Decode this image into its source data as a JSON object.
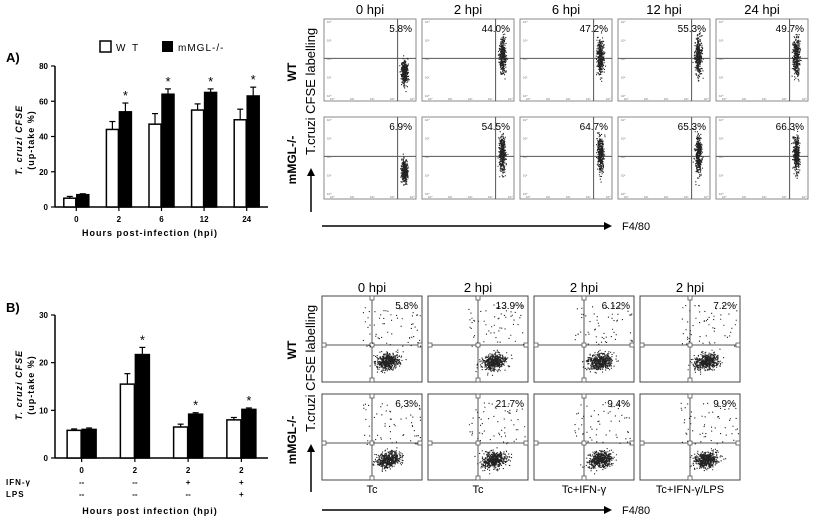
{
  "chart_data": [
    {
      "id": "A",
      "type": "bar",
      "panel_label": "A)",
      "legend": [
        "W T",
        "mMGL-/-"
      ],
      "categories": [
        "0",
        "2",
        "6",
        "12",
        "24"
      ],
      "series": [
        {
          "name": "W T",
          "fill": "#ffffff",
          "values": [
            5,
            44,
            47,
            55,
            49.5
          ],
          "errors": [
            1,
            4.5,
            6,
            3.5,
            6
          ]
        },
        {
          "name": "mMGL-/-",
          "fill": "#000000",
          "values": [
            7,
            54,
            64,
            65,
            63
          ],
          "errors": [
            0.5,
            5,
            3,
            2,
            5
          ]
        }
      ],
      "significant": [
        "",
        "*",
        "*",
        "*",
        "*"
      ],
      "ylim": [
        0,
        80
      ],
      "yticks": [
        0,
        20,
        40,
        60,
        80
      ],
      "ylabel_lines": [
        "T. cruzi CFSE",
        "(up-take %)"
      ],
      "xlabel": "Hours post-infection (hpi)"
    },
    {
      "id": "B",
      "type": "bar",
      "panel_label": "B)",
      "categories": [
        "0",
        "2",
        "2",
        "2"
      ],
      "series": [
        {
          "name": "WT",
          "fill": "#ffffff",
          "values": [
            5.8,
            15.5,
            6.5,
            8
          ],
          "errors": [
            0.3,
            2.2,
            0.6,
            0.5
          ]
        },
        {
          "name": "mMGL-/-",
          "fill": "#000000",
          "values": [
            6,
            21.7,
            9.2,
            10.2
          ],
          "errors": [
            0.3,
            1.5,
            0.3,
            0.3
          ]
        }
      ],
      "significant": [
        "",
        "*",
        "*",
        "*"
      ],
      "ylim": [
        0,
        30
      ],
      "yticks": [
        0,
        10,
        20,
        30
      ],
      "yticklabels": [
        "0",
        "10",
        "20",
        "30"
      ],
      "ylabel_lines": [
        "T. cruzi CFSE",
        "(up-take %)"
      ],
      "xlabel": "Hours post infection (hpi)",
      "treatment_rows": [
        {
          "label": "IFN-γ",
          "values": [
            "--",
            "--",
            "+",
            "+"
          ]
        },
        {
          "label": "LPS",
          "values": [
            "--",
            "--",
            "--",
            "+"
          ]
        }
      ]
    },
    {
      "id": "C",
      "type": "scatter",
      "column_headers": [
        "0 hpi",
        "2 hpi",
        "6 hpi",
        "12 hpi",
        "24 hpi"
      ],
      "row_labels": [
        "WT",
        "mMGL-/-"
      ],
      "percentages": [
        [
          "5.8%",
          "44.0%",
          "47.2%",
          "55.3%",
          "49.7%"
        ],
        [
          "6.9%",
          "54.5%",
          "64.7%",
          "65.3%",
          "66.3%"
        ]
      ],
      "ylabel": "T.cruzi CFSE labelling",
      "xlabel": "F4/80",
      "gate_ticks": [
        "10⁰",
        "10¹",
        "10²",
        "10³",
        "10⁴"
      ]
    },
    {
      "id": "D",
      "type": "scatter",
      "column_headers": [
        "0 hpi",
        "2 hpi",
        "2 hpi",
        "2 hpi"
      ],
      "row_labels": [
        "WT",
        "mMGL-/-"
      ],
      "percentages": [
        [
          "5.8%",
          "13.9%",
          "6.12%",
          "7.2%"
        ],
        [
          "6.3%",
          "21.7%",
          "9.4%",
          "9.9%"
        ]
      ],
      "conditions": [
        "Tc",
        "Tc",
        "Tc+IFN-γ",
        "Tc+IFN-γ/LPS"
      ],
      "ylabel": "T.cruzi CFSE labelling",
      "xlabel": "F4/80"
    }
  ]
}
